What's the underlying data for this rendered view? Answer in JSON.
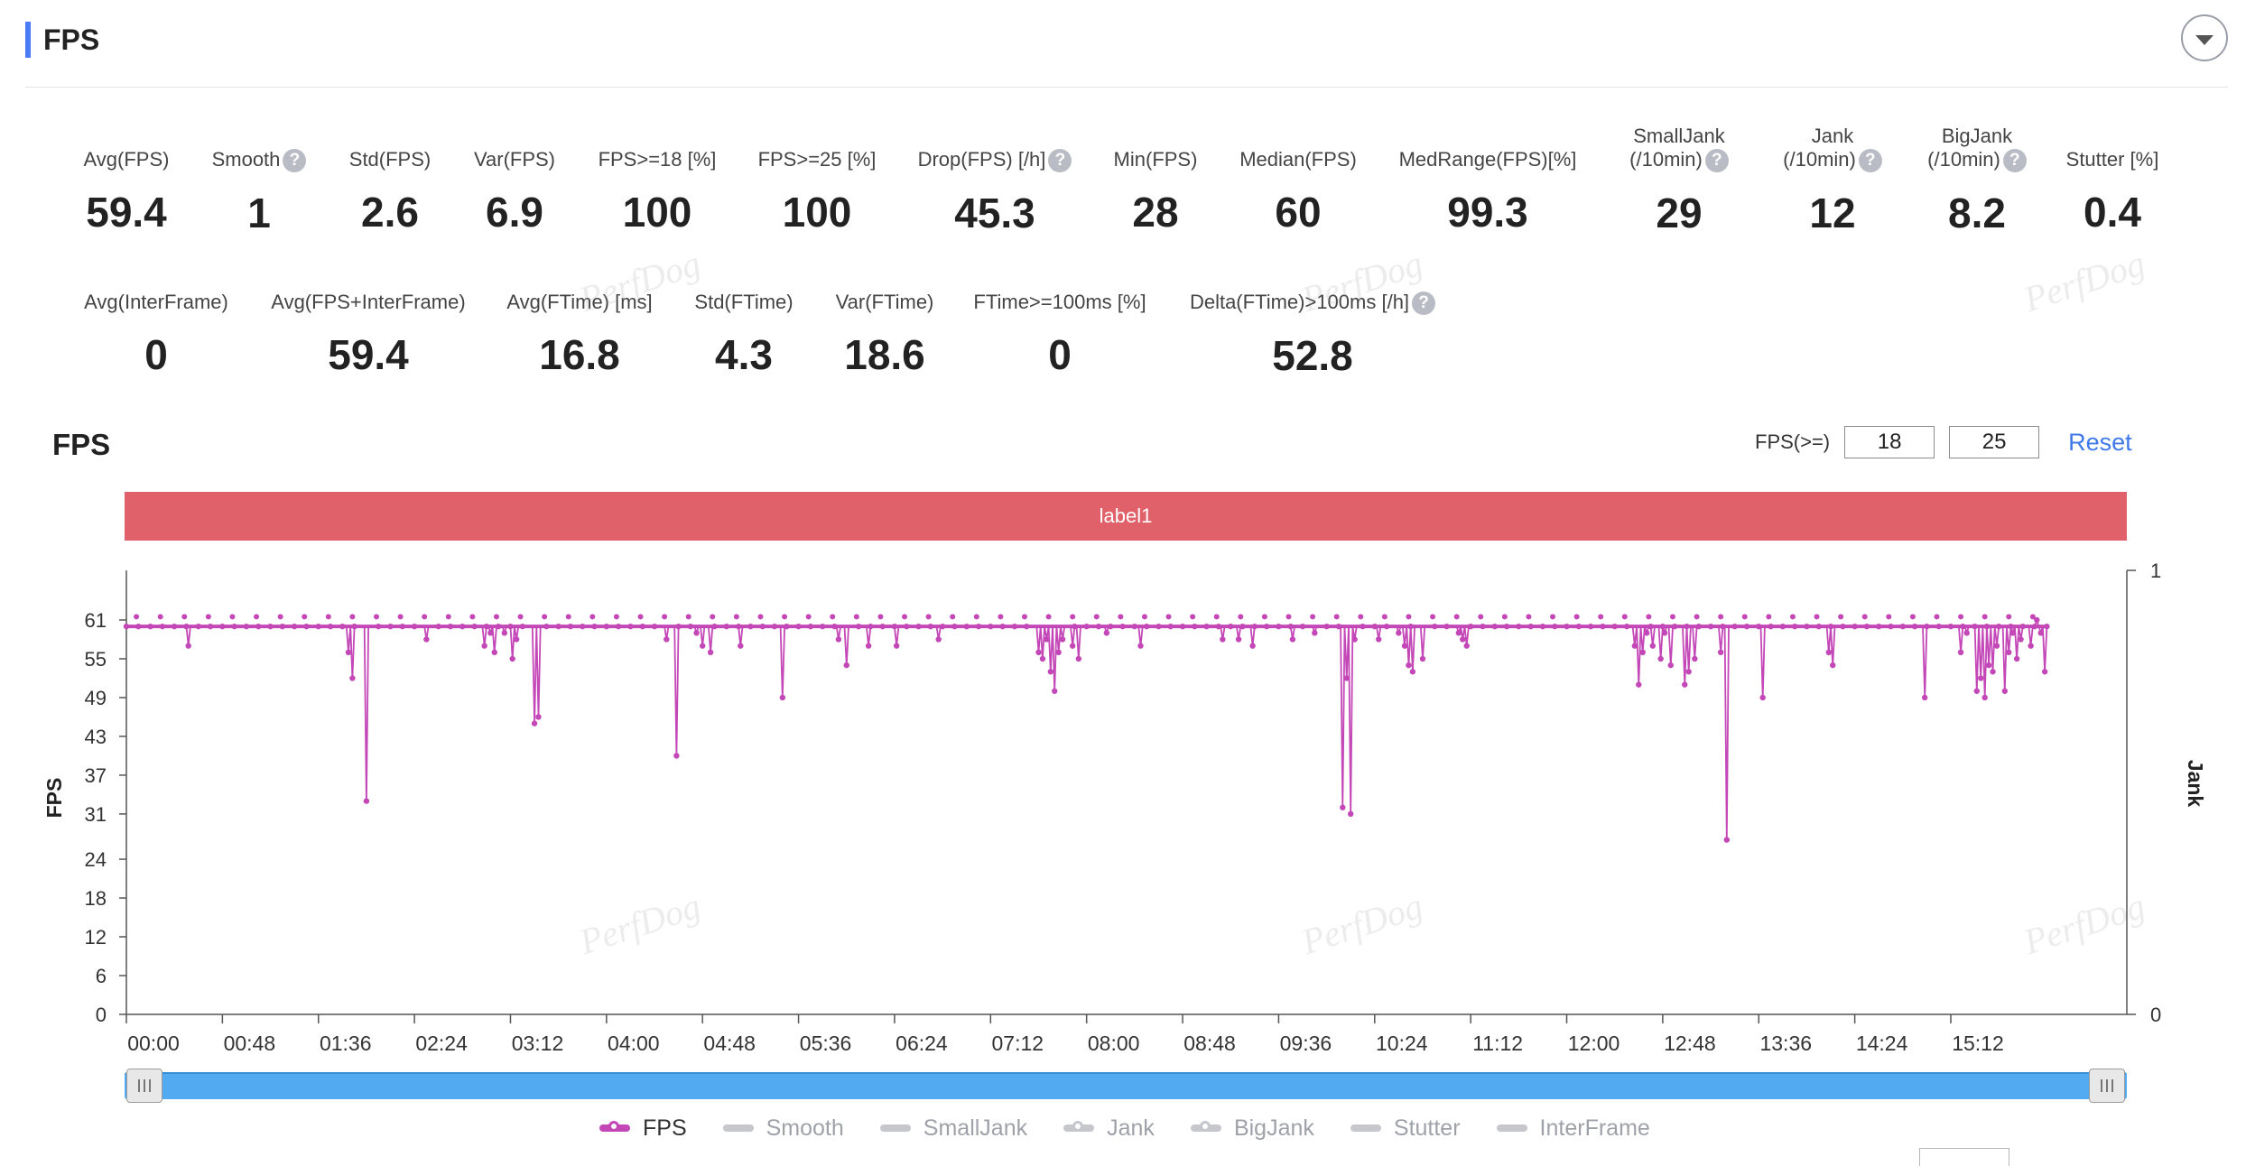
{
  "header": {
    "title": "FPS"
  },
  "metrics_row1": [
    {
      "label": "Avg(FPS)",
      "value": "59.4",
      "help": false
    },
    {
      "label": "Smooth",
      "value": "1",
      "help": true
    },
    {
      "label": "Std(FPS)",
      "value": "2.6",
      "help": false
    },
    {
      "label": "Var(FPS)",
      "value": "6.9",
      "help": false
    },
    {
      "label": "FPS>=18 [%]",
      "value": "100",
      "help": false
    },
    {
      "label": "FPS>=25 [%]",
      "value": "100",
      "help": false
    },
    {
      "label": "Drop(FPS) [/h]",
      "value": "45.3",
      "help": true
    },
    {
      "label": "Min(FPS)",
      "value": "28",
      "help": false
    },
    {
      "label": "Median(FPS)",
      "value": "60",
      "help": false
    },
    {
      "label": "MedRange(FPS)[%]",
      "value": "99.3",
      "help": false
    },
    {
      "label": "SmallJank",
      "label2": "(/10min)",
      "value": "29",
      "help": true
    },
    {
      "label": "Jank",
      "label2": "(/10min)",
      "value": "12",
      "help": true
    },
    {
      "label": "BigJank",
      "label2": "(/10min)",
      "value": "8.2",
      "help": true
    },
    {
      "label": "Stutter [%]",
      "value": "0.4",
      "help": false
    }
  ],
  "metrics_row2": [
    {
      "label": "Avg(InterFrame)",
      "value": "0",
      "help": false
    },
    {
      "label": "Avg(FPS+InterFrame)",
      "value": "59.4",
      "help": false
    },
    {
      "label": "Avg(FTime) [ms]",
      "value": "16.8",
      "help": false
    },
    {
      "label": "Std(FTime)",
      "value": "4.3",
      "help": false
    },
    {
      "label": "Var(FTime)",
      "value": "18.6",
      "help": false
    },
    {
      "label": "FTime>=100ms [%]",
      "value": "0",
      "help": false
    },
    {
      "label": "Delta(FTime)>100ms [/h]",
      "value": "52.8",
      "help": true
    }
  ],
  "help_glyph": "?",
  "chart_section": {
    "title": "FPS",
    "threshold_label": "FPS(>=)",
    "threshold_1": "18",
    "threshold_2": "25",
    "reset_label": "Reset",
    "band_label": "label1"
  },
  "watermark_text": "PerfDog",
  "chart_data": {
    "type": "line",
    "ylabel": "FPS",
    "y2label": "Jank",
    "yticks": [
      0,
      6,
      12,
      18,
      24,
      31,
      37,
      43,
      49,
      55,
      61
    ],
    "ylim": [
      0,
      67
    ],
    "y2ticks": [
      "0",
      "1"
    ],
    "xticks": [
      "00:00",
      "00:48",
      "01:36",
      "02:24",
      "03:12",
      "04:00",
      "04:48",
      "05:36",
      "06:24",
      "07:12",
      "08:00",
      "08:48",
      "09:36",
      "10:24",
      "11:12",
      "12:00",
      "12:48",
      "13:36",
      "14:24",
      "15:12"
    ],
    "x_range_seconds": [
      0,
      1000
    ],
    "baseline": 60,
    "dips": [
      {
        "t": 31,
        "v": 57
      },
      {
        "t": 111,
        "v": 56
      },
      {
        "t": 113,
        "v": 52
      },
      {
        "t": 120,
        "v": 33
      },
      {
        "t": 150,
        "v": 58
      },
      {
        "t": 179,
        "v": 57
      },
      {
        "t": 182,
        "v": 59
      },
      {
        "t": 184,
        "v": 56
      },
      {
        "t": 189,
        "v": 59
      },
      {
        "t": 193,
        "v": 55
      },
      {
        "t": 195,
        "v": 58
      },
      {
        "t": 204,
        "v": 45
      },
      {
        "t": 206,
        "v": 46
      },
      {
        "t": 270,
        "v": 58
      },
      {
        "t": 275,
        "v": 40
      },
      {
        "t": 285,
        "v": 59
      },
      {
        "t": 288,
        "v": 57
      },
      {
        "t": 292,
        "v": 56
      },
      {
        "t": 307,
        "v": 57
      },
      {
        "t": 328,
        "v": 49
      },
      {
        "t": 356,
        "v": 58
      },
      {
        "t": 360,
        "v": 54
      },
      {
        "t": 371,
        "v": 57
      },
      {
        "t": 385,
        "v": 57
      },
      {
        "t": 406,
        "v": 58
      },
      {
        "t": 456,
        "v": 56
      },
      {
        "t": 458,
        "v": 55
      },
      {
        "t": 460,
        "v": 58
      },
      {
        "t": 462,
        "v": 53
      },
      {
        "t": 464,
        "v": 50
      },
      {
        "t": 466,
        "v": 56
      },
      {
        "t": 468,
        "v": 58
      },
      {
        "t": 473,
        "v": 57
      },
      {
        "t": 476,
        "v": 55
      },
      {
        "t": 490,
        "v": 59
      },
      {
        "t": 507,
        "v": 57
      },
      {
        "t": 548,
        "v": 58
      },
      {
        "t": 556,
        "v": 58
      },
      {
        "t": 563,
        "v": 57
      },
      {
        "t": 583,
        "v": 58
      },
      {
        "t": 594,
        "v": 59
      },
      {
        "t": 608,
        "v": 32
      },
      {
        "t": 610,
        "v": 52
      },
      {
        "t": 612,
        "v": 31
      },
      {
        "t": 614,
        "v": 58
      },
      {
        "t": 626,
        "v": 58
      },
      {
        "t": 636,
        "v": 59
      },
      {
        "t": 639,
        "v": 57
      },
      {
        "t": 641,
        "v": 54
      },
      {
        "t": 643,
        "v": 53
      },
      {
        "t": 648,
        "v": 55
      },
      {
        "t": 666,
        "v": 59
      },
      {
        "t": 668,
        "v": 58
      },
      {
        "t": 670,
        "v": 57
      },
      {
        "t": 754,
        "v": 57
      },
      {
        "t": 756,
        "v": 51
      },
      {
        "t": 758,
        "v": 56
      },
      {
        "t": 760,
        "v": 59
      },
      {
        "t": 763,
        "v": 57
      },
      {
        "t": 767,
        "v": 55
      },
      {
        "t": 769,
        "v": 59
      },
      {
        "t": 772,
        "v": 54
      },
      {
        "t": 779,
        "v": 51
      },
      {
        "t": 781,
        "v": 53
      },
      {
        "t": 784,
        "v": 55
      },
      {
        "t": 797,
        "v": 56
      },
      {
        "t": 800,
        "v": 27
      },
      {
        "t": 818,
        "v": 49
      },
      {
        "t": 851,
        "v": 56
      },
      {
        "t": 853,
        "v": 54
      },
      {
        "t": 899,
        "v": 49
      },
      {
        "t": 917,
        "v": 56
      },
      {
        "t": 920,
        "v": 59
      },
      {
        "t": 925,
        "v": 50
      },
      {
        "t": 927,
        "v": 52
      },
      {
        "t": 929,
        "v": 49
      },
      {
        "t": 931,
        "v": 54
      },
      {
        "t": 933,
        "v": 53
      },
      {
        "t": 935,
        "v": 57
      },
      {
        "t": 937,
        "v": 60
      },
      {
        "t": 939,
        "v": 50
      },
      {
        "t": 941,
        "v": 56
      },
      {
        "t": 943,
        "v": 59
      },
      {
        "t": 945,
        "v": 55
      },
      {
        "t": 947,
        "v": 58
      },
      {
        "t": 949,
        "v": 60
      },
      {
        "t": 952,
        "v": 57
      },
      {
        "t": 955,
        "v": 61
      },
      {
        "t": 957,
        "v": 59
      },
      {
        "t": 959,
        "v": 53
      }
    ],
    "series": [
      {
        "name": "FPS",
        "color": "#c447b8",
        "active": true
      },
      {
        "name": "Smooth",
        "color": "#c5c7cc",
        "active": false
      },
      {
        "name": "SmallJank",
        "color": "#c5c7cc",
        "active": false
      },
      {
        "name": "Jank",
        "color": "#c5c7cc",
        "active": false,
        "marker": true
      },
      {
        "name": "BigJank",
        "color": "#c5c7cc",
        "active": false,
        "marker": true
      },
      {
        "name": "Stutter",
        "color": "#c5c7cc",
        "active": false
      },
      {
        "name": "InterFrame",
        "color": "#c5c7cc",
        "active": false
      }
    ],
    "colors": {
      "line": "#c447b8",
      "axis": "#555555",
      "tick_text": "#333333"
    }
  }
}
